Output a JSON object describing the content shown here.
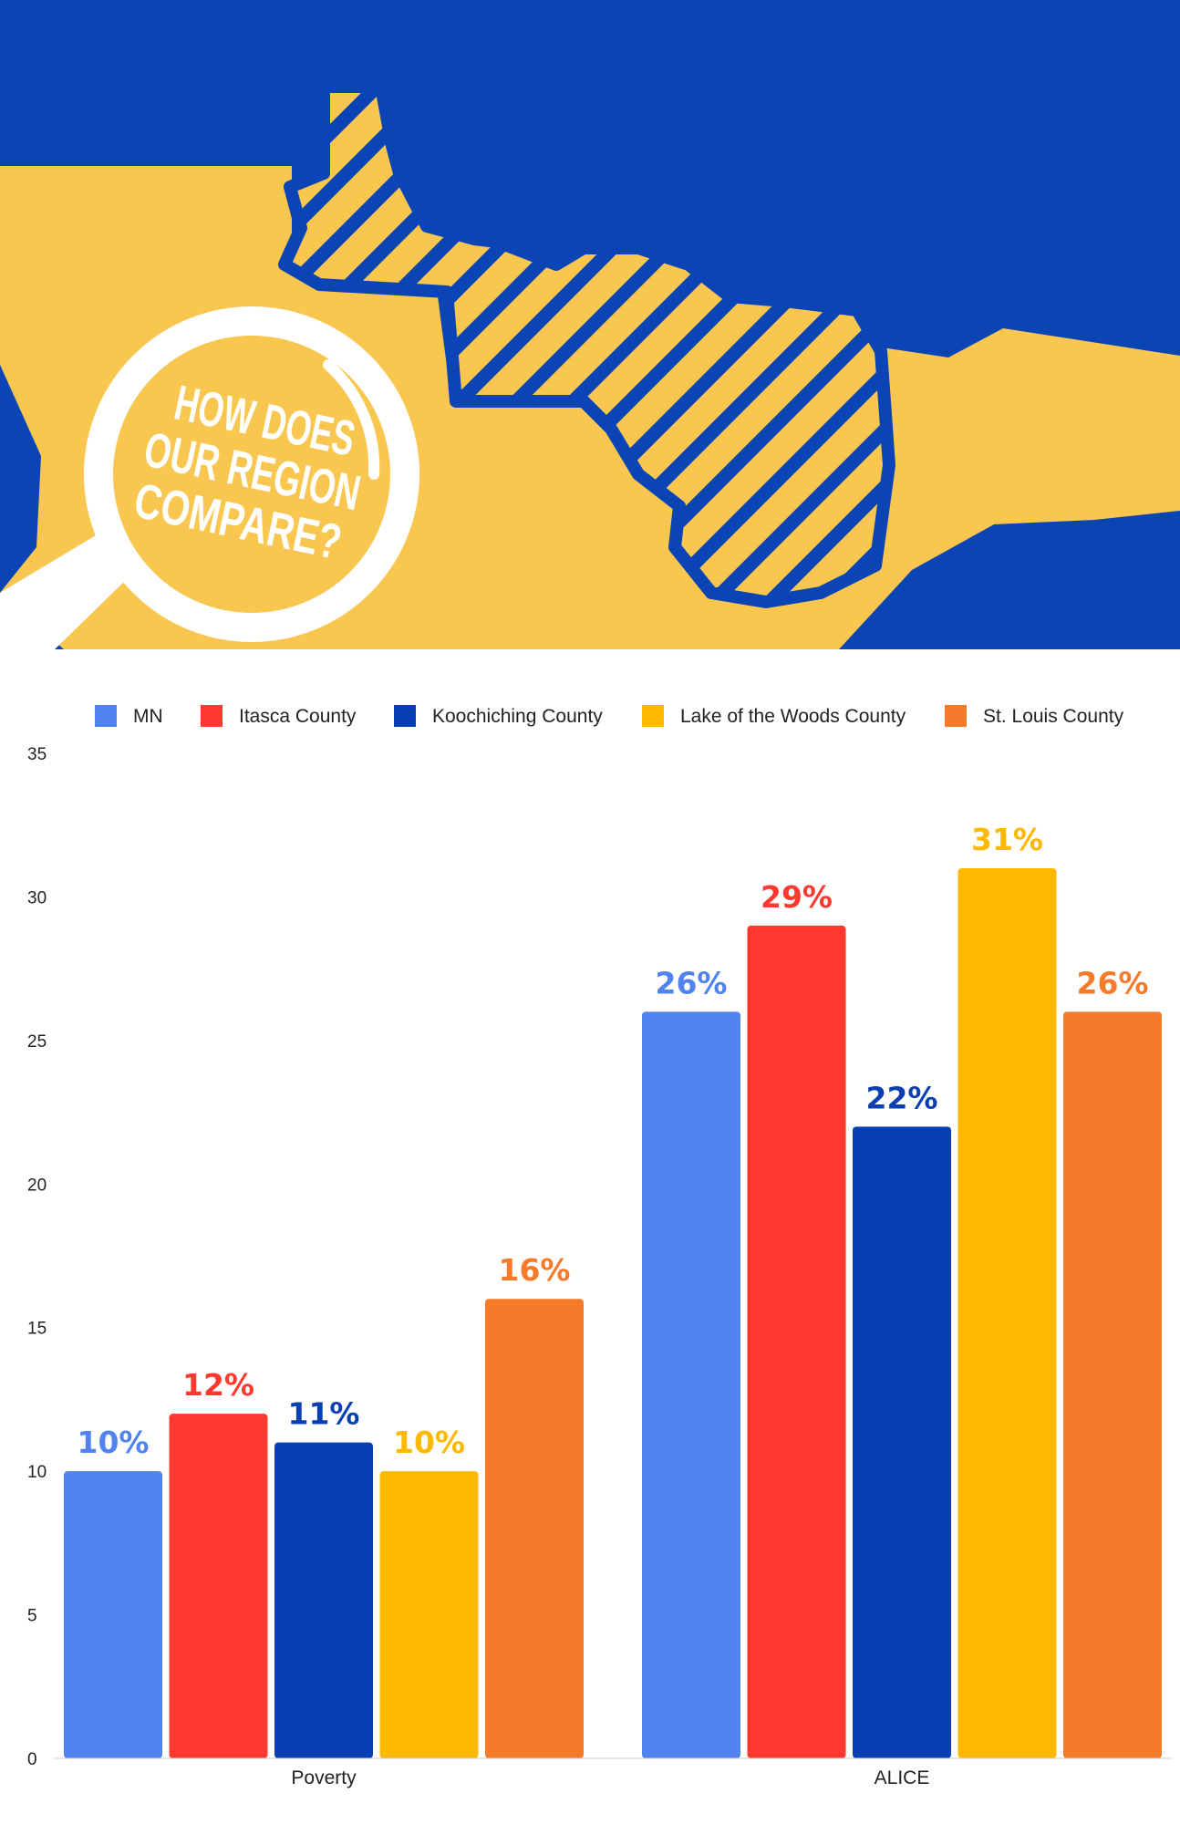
{
  "banner": {
    "headline": [
      "HOW DOES",
      "OUR REGION",
      "COMPARE?"
    ],
    "colors": {
      "blue": "#0a44b5",
      "gold": "#f9c74f",
      "white": "#ffffff"
    },
    "icon": "magnifying-glass-icon"
  },
  "chart_data": {
    "type": "bar",
    "categories": [
      "Poverty",
      "ALICE"
    ],
    "series": [
      {
        "name": "MN",
        "color": "#5183ef",
        "values": [
          10,
          26
        ],
        "labels": [
          "10%",
          "26%"
        ]
      },
      {
        "name": "Itasca County",
        "color": "#ff3830",
        "values": [
          12,
          29
        ],
        "labels": [
          "12%",
          "29%"
        ]
      },
      {
        "name": "Koochiching County",
        "color": "#0a3fb4",
        "values": [
          11,
          22
        ],
        "labels": [
          "11%",
          "22%"
        ]
      },
      {
        "name": "Lake of the Woods County",
        "color": "#ffb800",
        "values": [
          10,
          31
        ],
        "labels": [
          "10%",
          "31%"
        ]
      },
      {
        "name": "St. Louis County",
        "color": "#f57a29",
        "values": [
          16,
          26
        ],
        "labels": [
          "16%",
          "26%"
        ]
      }
    ],
    "ylim": [
      0,
      35
    ],
    "yticks": [
      0,
      5,
      10,
      15,
      20,
      25,
      30,
      35
    ],
    "grid": false,
    "legend": "top"
  }
}
